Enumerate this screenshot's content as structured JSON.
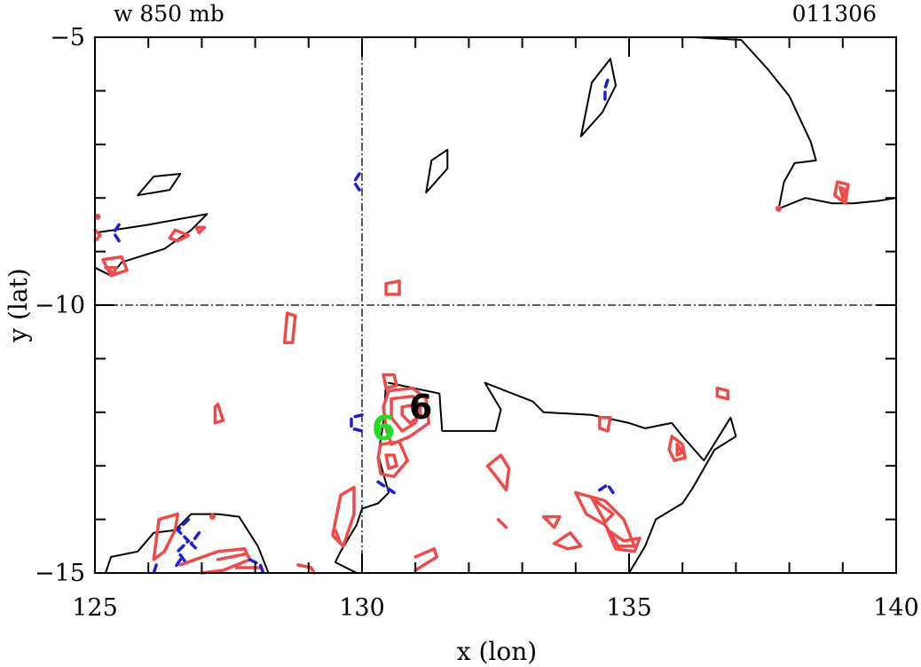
{
  "header": {
    "left": "w 850 mb",
    "right": "011306"
  },
  "chart_data": {
    "type": "contour",
    "xlabel": "x (lon)",
    "ylabel": "y (lat)",
    "xlim": [
      125,
      140
    ],
    "ylim": [
      -15,
      -5
    ],
    "x_ticks": [
      125,
      130,
      135,
      140
    ],
    "x_tick_labels": [
      "125",
      "130",
      "135",
      "140"
    ],
    "y_ticks": [
      -5,
      -10,
      -15
    ],
    "y_tick_labels": [
      "−5",
      "−10",
      "−15"
    ],
    "reference_lines": {
      "lon": 130,
      "lat": -10
    },
    "colors": {
      "coast": "#000000",
      "positive": "#ef4a4a",
      "negative": "#1f1fd6",
      "marker_analysis": "#000000",
      "marker_forecast": "#22dd22"
    },
    "storm_markers": [
      {
        "label": "6",
        "lon": 131.1,
        "lat": -11.9,
        "color": "#000000"
      },
      {
        "label": "6",
        "lon": 130.4,
        "lat": -12.3,
        "color": "#22dd22"
      }
    ],
    "coastlines": [
      [
        [
          130.5,
          -11.45
        ],
        [
          131.45,
          -11.65
        ],
        [
          131.5,
          -12.35
        ],
        [
          132.5,
          -12.35
        ],
        [
          132.6,
          -11.95
        ],
        [
          132.3,
          -11.45
        ],
        [
          133.2,
          -11.8
        ],
        [
          133.4,
          -12.0
        ],
        [
          134.3,
          -12.05
        ],
        [
          135.0,
          -12.2
        ],
        [
          135.3,
          -12.3
        ],
        [
          135.8,
          -12.2
        ],
        [
          136.0,
          -12.45
        ],
        [
          136.4,
          -12.9
        ],
        [
          136.9,
          -12.1
        ],
        [
          137.0,
          -12.45
        ],
        [
          136.6,
          -12.7
        ],
        [
          136.2,
          -13.4
        ],
        [
          136.0,
          -13.7
        ],
        [
          135.5,
          -14.0
        ],
        [
          135.3,
          -14.5
        ],
        [
          135.0,
          -15.0
        ]
      ],
      [
        [
          130.45,
          -11.45
        ],
        [
          130.4,
          -12.2
        ],
        [
          130.3,
          -12.8
        ],
        [
          130.5,
          -13.5
        ],
        [
          130.3,
          -13.7
        ],
        [
          130.0,
          -13.8
        ],
        [
          129.9,
          -14.1
        ],
        [
          129.6,
          -14.6
        ],
        [
          129.5,
          -14.8
        ],
        [
          129.9,
          -15.0
        ]
      ],
      [
        [
          125.2,
          -15.0
        ],
        [
          125.3,
          -14.7
        ],
        [
          125.8,
          -14.6
        ],
        [
          126.1,
          -14.25
        ],
        [
          126.5,
          -14.2
        ],
        [
          126.8,
          -13.9
        ],
        [
          127.3,
          -13.9
        ],
        [
          127.7,
          -13.95
        ],
        [
          128.05,
          -14.5
        ],
        [
          128.25,
          -15.0
        ]
      ],
      [
        [
          125.0,
          -8.65
        ],
        [
          126.0,
          -8.5
        ],
        [
          127.1,
          -8.3
        ],
        [
          126.8,
          -8.6
        ],
        [
          126.3,
          -8.95
        ],
        [
          125.5,
          -9.2
        ],
        [
          125.3,
          -9.45
        ],
        [
          125.0,
          -9.3
        ]
      ],
      [
        [
          125.8,
          -7.95
        ],
        [
          126.4,
          -7.85
        ],
        [
          126.6,
          -7.55
        ],
        [
          126.1,
          -7.6
        ],
        [
          125.8,
          -7.95
        ]
      ],
      [
        [
          134.1,
          -6.85
        ],
        [
          134.5,
          -6.4
        ],
        [
          134.75,
          -5.9
        ],
        [
          134.65,
          -5.4
        ],
        [
          134.3,
          -5.85
        ],
        [
          134.1,
          -6.85
        ]
      ],
      [
        [
          131.2,
          -7.9
        ],
        [
          131.6,
          -7.45
        ],
        [
          131.6,
          -7.1
        ],
        [
          131.3,
          -7.3
        ],
        [
          131.2,
          -7.9
        ]
      ],
      [
        [
          136.2,
          -5.0
        ],
        [
          137.1,
          -5.05
        ],
        [
          137.6,
          -5.6
        ],
        [
          138.0,
          -6.1
        ],
        [
          138.4,
          -6.95
        ],
        [
          138.5,
          -7.3
        ],
        [
          138.1,
          -7.35
        ],
        [
          137.9,
          -7.7
        ],
        [
          137.8,
          -8.2
        ],
        [
          138.3,
          -8.0
        ],
        [
          138.8,
          -8.1
        ],
        [
          139.2,
          -8.1
        ],
        [
          139.7,
          -8.05
        ],
        [
          140.0,
          -8.0
        ]
      ]
    ],
    "positive_contours": [
      [
        [
          130.5,
          -11.6
        ],
        [
          130.95,
          -11.55
        ],
        [
          131.2,
          -11.75
        ],
        [
          131.25,
          -12.2
        ],
        [
          130.9,
          -12.45
        ],
        [
          130.55,
          -12.6
        ],
        [
          130.45,
          -12.3
        ],
        [
          130.4,
          -11.9
        ],
        [
          130.5,
          -11.6
        ]
      ],
      [
        [
          130.55,
          -11.75
        ],
        [
          130.95,
          -11.7
        ],
        [
          131.1,
          -11.9
        ],
        [
          131.0,
          -12.2
        ],
        [
          130.75,
          -12.35
        ],
        [
          130.55,
          -12.1
        ],
        [
          130.55,
          -11.75
        ]
      ],
      [
        [
          130.75,
          -11.9
        ],
        [
          131.05,
          -11.85
        ],
        [
          131.1,
          -12.05
        ],
        [
          130.9,
          -12.2
        ],
        [
          130.75,
          -12.05
        ],
        [
          130.75,
          -11.9
        ]
      ],
      [
        [
          130.35,
          -12.6
        ],
        [
          130.7,
          -12.55
        ],
        [
          130.85,
          -12.9
        ],
        [
          130.6,
          -13.2
        ],
        [
          130.35,
          -13.15
        ],
        [
          130.3,
          -12.85
        ],
        [
          130.35,
          -12.6
        ]
      ],
      [
        [
          130.45,
          -12.8
        ],
        [
          130.6,
          -12.8
        ],
        [
          130.65,
          -13.0
        ],
        [
          130.5,
          -13.05
        ],
        [
          130.45,
          -12.8
        ]
      ],
      [
        [
          130.4,
          -11.3
        ],
        [
          130.6,
          -11.3
        ],
        [
          130.65,
          -11.5
        ],
        [
          130.45,
          -11.55
        ],
        [
          130.4,
          -11.3
        ]
      ],
      [
        [
          130.45,
          -9.6
        ],
        [
          130.7,
          -9.55
        ],
        [
          130.7,
          -9.8
        ],
        [
          130.45,
          -9.8
        ],
        [
          130.45,
          -9.6
        ]
      ],
      [
        [
          132.35,
          -13.0
        ],
        [
          132.6,
          -12.8
        ],
        [
          132.75,
          -13.05
        ],
        [
          132.7,
          -13.45
        ],
        [
          132.55,
          -13.25
        ],
        [
          132.35,
          -13.0
        ]
      ],
      [
        [
          132.55,
          -14.0
        ],
        [
          132.7,
          -14.15
        ]
      ],
      [
        [
          133.4,
          -13.95
        ],
        [
          133.7,
          -13.95
        ],
        [
          133.6,
          -14.15
        ],
        [
          133.4,
          -13.95
        ]
      ],
      [
        [
          133.6,
          -14.45
        ],
        [
          133.9,
          -14.25
        ],
        [
          134.1,
          -14.5
        ],
        [
          133.85,
          -14.55
        ],
        [
          133.6,
          -14.45
        ]
      ],
      [
        [
          134.0,
          -13.5
        ],
        [
          134.55,
          -13.65
        ],
        [
          134.9,
          -14.0
        ],
        [
          135.1,
          -14.5
        ],
        [
          134.8,
          -14.5
        ],
        [
          134.55,
          -14.1
        ],
        [
          134.2,
          -13.9
        ],
        [
          134.0,
          -13.5
        ]
      ],
      [
        [
          134.3,
          -13.6
        ],
        [
          134.7,
          -13.9
        ],
        [
          134.55,
          -14.05
        ],
        [
          134.3,
          -13.6
        ]
      ],
      [
        [
          134.6,
          -14.2
        ],
        [
          134.9,
          -14.4
        ],
        [
          135.2,
          -14.35
        ],
        [
          135.1,
          -14.6
        ],
        [
          134.75,
          -14.55
        ],
        [
          134.6,
          -14.2
        ]
      ],
      [
        [
          134.45,
          -12.1
        ],
        [
          134.65,
          -12.1
        ],
        [
          134.6,
          -12.35
        ],
        [
          134.45,
          -12.3
        ],
        [
          134.45,
          -12.1
        ]
      ],
      [
        [
          135.8,
          -12.45
        ],
        [
          136.0,
          -12.6
        ],
        [
          136.05,
          -12.85
        ],
        [
          135.85,
          -12.9
        ],
        [
          135.75,
          -12.7
        ],
        [
          135.8,
          -12.45
        ]
      ],
      [
        [
          135.9,
          -12.6
        ],
        [
          136.0,
          -12.75
        ],
        [
          135.9,
          -12.8
        ],
        [
          135.9,
          -12.6
        ]
      ],
      [
        [
          136.65,
          -11.55
        ],
        [
          136.85,
          -11.6
        ],
        [
          136.85,
          -11.75
        ],
        [
          136.65,
          -11.7
        ],
        [
          136.65,
          -11.55
        ]
      ],
      [
        [
          138.9,
          -7.7
        ],
        [
          139.1,
          -7.75
        ],
        [
          139.05,
          -8.1
        ],
        [
          138.85,
          -7.95
        ],
        [
          138.9,
          -7.7
        ]
      ],
      [
        [
          138.95,
          -7.8
        ],
        [
          139.05,
          -7.85
        ],
        [
          139.0,
          -8.0
        ],
        [
          138.95,
          -7.8
        ]
      ],
      [
        [
          137.8,
          -8.2
        ]
      ],
      [
        [
          128.6,
          -10.15
        ],
        [
          128.75,
          -10.2
        ],
        [
          128.7,
          -10.7
        ],
        [
          128.55,
          -10.7
        ],
        [
          128.6,
          -10.15
        ]
      ],
      [
        [
          127.3,
          -11.85
        ],
        [
          127.4,
          -12.15
        ],
        [
          127.25,
          -12.2
        ],
        [
          127.25,
          -11.9
        ],
        [
          127.3,
          -11.85
        ]
      ],
      [
        [
          126.5,
          -8.6
        ],
        [
          126.75,
          -8.7
        ],
        [
          126.55,
          -8.8
        ],
        [
          126.4,
          -8.75
        ],
        [
          126.5,
          -8.6
        ]
      ],
      [
        [
          126.9,
          -8.55
        ],
        [
          127.05,
          -8.55
        ],
        [
          126.95,
          -8.65
        ],
        [
          126.9,
          -8.55
        ]
      ],
      [
        [
          125.15,
          -9.15
        ],
        [
          125.5,
          -9.1
        ],
        [
          125.6,
          -9.35
        ],
        [
          125.3,
          -9.45
        ],
        [
          125.15,
          -9.15
        ]
      ],
      [
        [
          125.2,
          -9.3
        ],
        [
          125.4,
          -9.3
        ],
        [
          125.35,
          -9.4
        ],
        [
          125.2,
          -9.3
        ]
      ],
      [
        [
          125.0,
          -8.6
        ],
        [
          125.1,
          -8.7
        ],
        [
          125.0,
          -8.8
        ]
      ],
      [
        [
          125.05,
          -8.35
        ]
      ],
      [
        [
          129.6,
          -13.55
        ],
        [
          129.85,
          -13.4
        ],
        [
          129.85,
          -13.9
        ],
        [
          129.65,
          -14.5
        ],
        [
          129.45,
          -14.3
        ],
        [
          129.6,
          -13.55
        ]
      ],
      [
        [
          129.5,
          -14.2
        ],
        [
          129.6,
          -14.45
        ]
      ],
      [
        [
          126.2,
          -14.0
        ],
        [
          126.55,
          -13.9
        ],
        [
          126.5,
          -14.2
        ],
        [
          126.3,
          -14.6
        ],
        [
          126.1,
          -14.75
        ],
        [
          126.2,
          -14.0
        ]
      ],
      [
        [
          126.6,
          -14.85
        ],
        [
          127.3,
          -14.6
        ],
        [
          127.8,
          -14.55
        ],
        [
          127.9,
          -14.75
        ],
        [
          127.4,
          -14.95
        ],
        [
          127.0,
          -15.0
        ]
      ],
      [
        [
          127.3,
          -14.75
        ],
        [
          127.8,
          -14.65
        ]
      ],
      [
        [
          127.65,
          -14.9
        ],
        [
          128.1,
          -14.9
        ]
      ],
      [
        [
          128.8,
          -14.85
        ],
        [
          129.05,
          -14.9
        ],
        [
          129.1,
          -15.0
        ]
      ],
      [
        [
          131.0,
          -14.7
        ],
        [
          131.35,
          -14.55
        ],
        [
          131.4,
          -14.7
        ],
        [
          131.0,
          -14.95
        ]
      ],
      [
        [
          127.2,
          -13.95
        ]
      ]
    ],
    "negative_contours": [
      [
        [
          130.0,
          -12.05
        ],
        [
          129.8,
          -12.1
        ],
        [
          129.8,
          -12.3
        ],
        [
          130.0,
          -12.35
        ]
      ],
      [
        [
          129.95,
          -7.55
        ],
        [
          129.85,
          -7.7
        ],
        [
          129.95,
          -7.85
        ]
      ],
      [
        [
          134.6,
          -5.8
        ],
        [
          134.55,
          -5.95
        ],
        [
          134.55,
          -6.2
        ]
      ],
      [
        [
          134.45,
          -13.45
        ],
        [
          134.6,
          -13.35
        ],
        [
          134.7,
          -13.5
        ]
      ],
      [
        [
          130.3,
          -13.3
        ],
        [
          130.6,
          -13.5
        ]
      ],
      [
        [
          125.45,
          -8.5
        ],
        [
          125.35,
          -8.65
        ],
        [
          125.45,
          -8.8
        ]
      ],
      [
        [
          126.75,
          -14.0
        ],
        [
          126.55,
          -14.2
        ],
        [
          126.75,
          -14.4
        ],
        [
          126.55,
          -14.6
        ],
        [
          126.7,
          -14.8
        ]
      ],
      [
        [
          126.95,
          -14.25
        ],
        [
          126.8,
          -14.45
        ],
        [
          126.95,
          -14.6
        ]
      ],
      [
        [
          127.9,
          -14.75
        ],
        [
          128.1,
          -14.85
        ],
        [
          128.15,
          -15.0
        ]
      ],
      [
        [
          126.15,
          -14.85
        ],
        [
          126.1,
          -15.0
        ]
      ],
      [
        [
          126.6,
          -14.75
        ],
        [
          126.5,
          -14.9
        ]
      ]
    ]
  }
}
